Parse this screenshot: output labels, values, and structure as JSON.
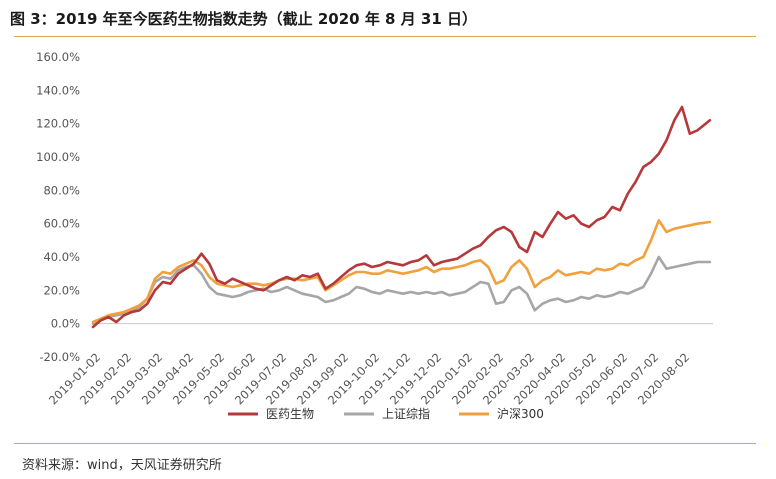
{
  "header": {
    "title": "图 3：2019 年至今医药生物指数走势（截止 2020 年 8 月 31 日）"
  },
  "footer": {
    "source": "资料来源：wind，天风证券研究所"
  },
  "chart_data": {
    "type": "line",
    "title": "2019 年至今医药生物指数走势（截止 2020 年 8 月 31 日）",
    "xlabel": "",
    "ylabel": "",
    "ylim": [
      -20,
      160
    ],
    "yticks": [
      "-20.0%",
      "0.0%",
      "20.0%",
      "40.0%",
      "60.0%",
      "80.0%",
      "100.0%",
      "120.0%",
      "140.0%",
      "160.0%"
    ],
    "ytick_values": [
      -20,
      0,
      20,
      40,
      60,
      80,
      100,
      120,
      140,
      160
    ],
    "categories": [
      "2019-01-02",
      "2019-02-02",
      "2019-03-02",
      "2019-04-02",
      "2019-05-02",
      "2019-06-02",
      "2019-07-02",
      "2019-08-02",
      "2019-09-02",
      "2019-10-02",
      "2019-11-02",
      "2019-12-02",
      "2020-01-02",
      "2020-02-02",
      "2020-03-02",
      "2020-04-02",
      "2020-05-02",
      "2020-06-02",
      "2020-07-02",
      "2020-08-02"
    ],
    "x": [
      0,
      0.25,
      0.5,
      0.75,
      1,
      1.25,
      1.5,
      1.75,
      2,
      2.25,
      2.5,
      2.75,
      3,
      3.25,
      3.5,
      3.75,
      4,
      4.25,
      4.5,
      4.75,
      5,
      5.25,
      5.5,
      5.75,
      6,
      6.25,
      6.5,
      6.75,
      7,
      7.25,
      7.5,
      7.75,
      8,
      8.25,
      8.5,
      8.75,
      9,
      9.25,
      9.5,
      9.75,
      10,
      10.25,
      10.5,
      10.75,
      11,
      11.25,
      11.5,
      11.75,
      12,
      12.25,
      12.5,
      12.75,
      13,
      13.25,
      13.5,
      13.75,
      14,
      14.25,
      14.5,
      14.75,
      15,
      15.25,
      15.5,
      15.75,
      16,
      16.25,
      16.5,
      16.75,
      17,
      17.25,
      17.5,
      17.75,
      18,
      18.25,
      18.5,
      18.75,
      19,
      19.25,
      19.5,
      19.9
    ],
    "series": [
      {
        "name": "医药生物",
        "color": "#b5393a",
        "values": [
          -2,
          2,
          4,
          1,
          5,
          7,
          8,
          12,
          20,
          25,
          24,
          30,
          33,
          36,
          42,
          36,
          26,
          24,
          27,
          25,
          23,
          21,
          20,
          23,
          26,
          28,
          26,
          29,
          28,
          30,
          21,
          24,
          28,
          32,
          35,
          36,
          34,
          35,
          37,
          36,
          35,
          37,
          38,
          41,
          35,
          37,
          38,
          39,
          42,
          45,
          47,
          52,
          56,
          58,
          55,
          46,
          43,
          55,
          52,
          60,
          67,
          63,
          65,
          60,
          58,
          62,
          64,
          70,
          68,
          78,
          85,
          94,
          97,
          102,
          110,
          122,
          130,
          114,
          116,
          122
        ]
      },
      {
        "name": "上证综指",
        "color": "#a6a6a6",
        "values": [
          0,
          2,
          4,
          5,
          6,
          8,
          10,
          15,
          25,
          28,
          27,
          32,
          34,
          35,
          30,
          22,
          18,
          17,
          16,
          17,
          19,
          20,
          21,
          19,
          20,
          22,
          20,
          18,
          17,
          16,
          13,
          14,
          16,
          18,
          22,
          21,
          19,
          18,
          20,
          19,
          18,
          19,
          18,
          19,
          18,
          19,
          17,
          18,
          19,
          22,
          25,
          24,
          12,
          13,
          20,
          22,
          18,
          8,
          12,
          14,
          15,
          13,
          14,
          16,
          15,
          17,
          16,
          17,
          19,
          18,
          20,
          22,
          30,
          40,
          33,
          34,
          35,
          36,
          37,
          37
        ]
      },
      {
        "name": "沪深300",
        "color": "#f0a03c",
        "values": [
          1,
          3,
          5,
          6,
          7,
          9,
          11,
          15,
          27,
          31,
          30,
          34,
          36,
          38,
          35,
          28,
          24,
          23,
          22,
          23,
          24,
          24,
          23,
          24,
          26,
          27,
          27,
          26,
          27,
          28,
          20,
          23,
          26,
          29,
          31,
          31,
          30,
          30,
          32,
          31,
          30,
          31,
          32,
          34,
          31,
          33,
          33,
          34,
          35,
          37,
          38,
          34,
          24,
          26,
          34,
          38,
          33,
          22,
          26,
          28,
          32,
          29,
          30,
          31,
          30,
          33,
          32,
          33,
          36,
          35,
          38,
          40,
          50,
          62,
          55,
          57,
          58,
          59,
          60,
          61
        ]
      }
    ],
    "legend": {
      "position": "bottom-center",
      "entries": [
        "医药生物",
        "上证综指",
        "沪深300"
      ]
    }
  }
}
